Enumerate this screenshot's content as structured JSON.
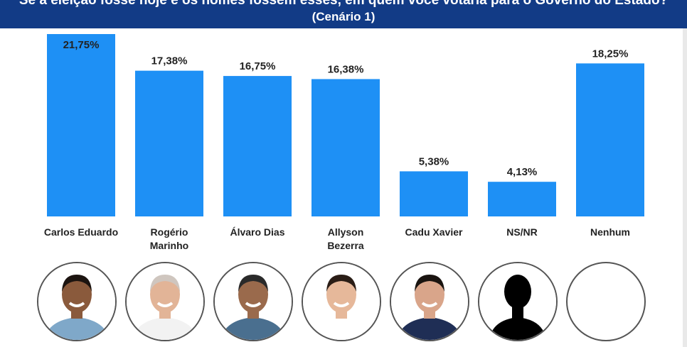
{
  "header": {
    "question": "Se a eleição fosse hoje e os nomes fossem esses, em quem você votaria para o Governo do Estado?",
    "scenario": "(Cenário 1)"
  },
  "colors": {
    "bar": "#1e90f5",
    "header_bg": "#123b86"
  },
  "chart_data": {
    "type": "bar",
    "categories": [
      "Carlos Eduardo",
      "Rogério Marinho",
      "Álvaro Dias",
      "Allyson Bezerra",
      "Cadu Xavier",
      "NS/NR",
      "Nenhum"
    ],
    "category_lines": [
      [
        "Carlos Eduardo"
      ],
      [
        "Rogério",
        "Marinho"
      ],
      [
        "Álvaro Dias"
      ],
      [
        "Allyson",
        "Bezerra"
      ],
      [
        "Cadu Xavier"
      ],
      [
        "NS/NR"
      ],
      [
        "Nenhum"
      ]
    ],
    "values": [
      21.75,
      17.38,
      16.75,
      16.38,
      5.38,
      4.13,
      18.25
    ],
    "value_labels": [
      "21,75%",
      "17,38%",
      "16,75%",
      "16,38%",
      "5,38%",
      "4,13%",
      "18,25%"
    ],
    "ylim": [
      0,
      21.75
    ],
    "grid": false
  },
  "candidates": [
    {
      "name": "Carlos Eduardo",
      "photo": "portrait-photo"
    },
    {
      "name": "Rogério Marinho",
      "photo": "portrait-photo"
    },
    {
      "name": "Álvaro Dias",
      "photo": "portrait-photo"
    },
    {
      "name": "Allyson Bezerra",
      "photo": "portrait-photo"
    },
    {
      "name": "Cadu Xavier",
      "photo": "portrait-photo"
    },
    {
      "name": "NS/NR",
      "photo": "silhouette-icon"
    },
    {
      "name": "Nenhum",
      "photo": "empty-circle"
    }
  ]
}
